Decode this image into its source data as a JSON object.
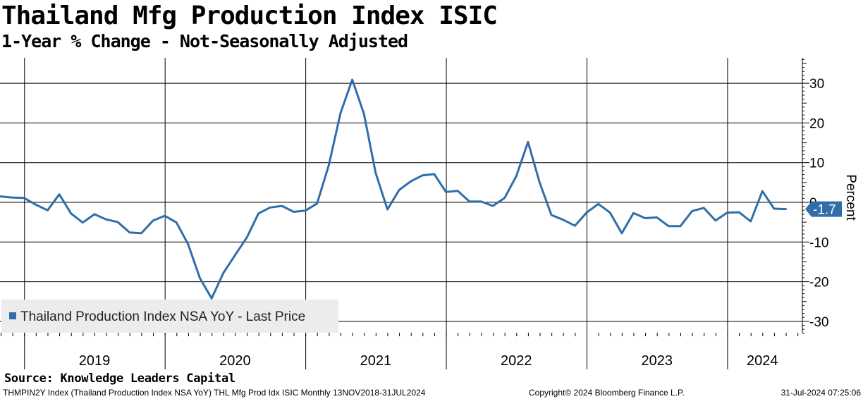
{
  "header": {
    "title": "Thailand Mfg Production Index ISIC",
    "subtitle": "1-Year % Change - Not-Seasonally Adjusted"
  },
  "source": "Source: Knowledge Leaders Capital",
  "footer": {
    "left": "THMPIN2Y Index (Thailand Production Index NSA YoY) THL Mfg Prod Idx ISIC  Monthly 13NOV2018-31JUL2024",
    "middle": "Copyright© 2024 Bloomberg Finance L.P.",
    "right": "31-Jul-2024 07:25:06"
  },
  "colors": {
    "series": "#2f6ea8",
    "badge": "#2f6ea8",
    "grid": "#000000",
    "legend_bg": "#ececec"
  },
  "chart_data": {
    "type": "line",
    "title": "Thailand Mfg Production Index ISIC",
    "subtitle": "1-Year % Change - Not-Seasonally Adjusted",
    "ylabel": "Percent",
    "ylim": [
      -33,
      36
    ],
    "yticks": [
      30,
      20,
      10,
      0,
      -10,
      -20,
      -30
    ],
    "ytick_labels": [
      "30",
      "20",
      "10",
      "0",
      "-10",
      "-20",
      "-30"
    ],
    "year_labels": [
      "2019",
      "2020",
      "2021",
      "2022",
      "2023",
      "2024"
    ],
    "x_start": "2018-11",
    "grid": true,
    "legend": {
      "label": "Thailand Production Index NSA YoY - Last Price",
      "position": "bottom-left"
    },
    "last_value_label": "-1.7",
    "series": [
      {
        "name": "Thailand Production Index NSA YoY - Last Price",
        "values": [
          1.5,
          1.2,
          1.1,
          -0.6,
          -2.0,
          2.0,
          -2.8,
          -5.1,
          -3.0,
          -4.3,
          -5.0,
          -7.6,
          -7.8,
          -4.6,
          -3.4,
          -5.1,
          -10.6,
          -19.1,
          -24.2,
          -17.8,
          -13.3,
          -8.9,
          -2.8,
          -1.3,
          -0.9,
          -2.4,
          -2.1,
          -0.3,
          9.4,
          22.5,
          30.9,
          22.3,
          7.4,
          -1.8,
          3.1,
          5.3,
          6.8,
          7.1,
          2.6,
          2.9,
          0.2,
          0.2,
          -0.9,
          1.1,
          6.6,
          15.2,
          4.9,
          -3.2,
          -4.4,
          -5.9,
          -2.6,
          -0.4,
          -2.6,
          -7.8,
          -2.7,
          -4.0,
          -3.8,
          -6.0,
          -6.0,
          -2.2,
          -1.4,
          -4.6,
          -2.6,
          -2.5,
          -4.8,
          2.8,
          -1.6,
          -1.7
        ]
      }
    ]
  }
}
